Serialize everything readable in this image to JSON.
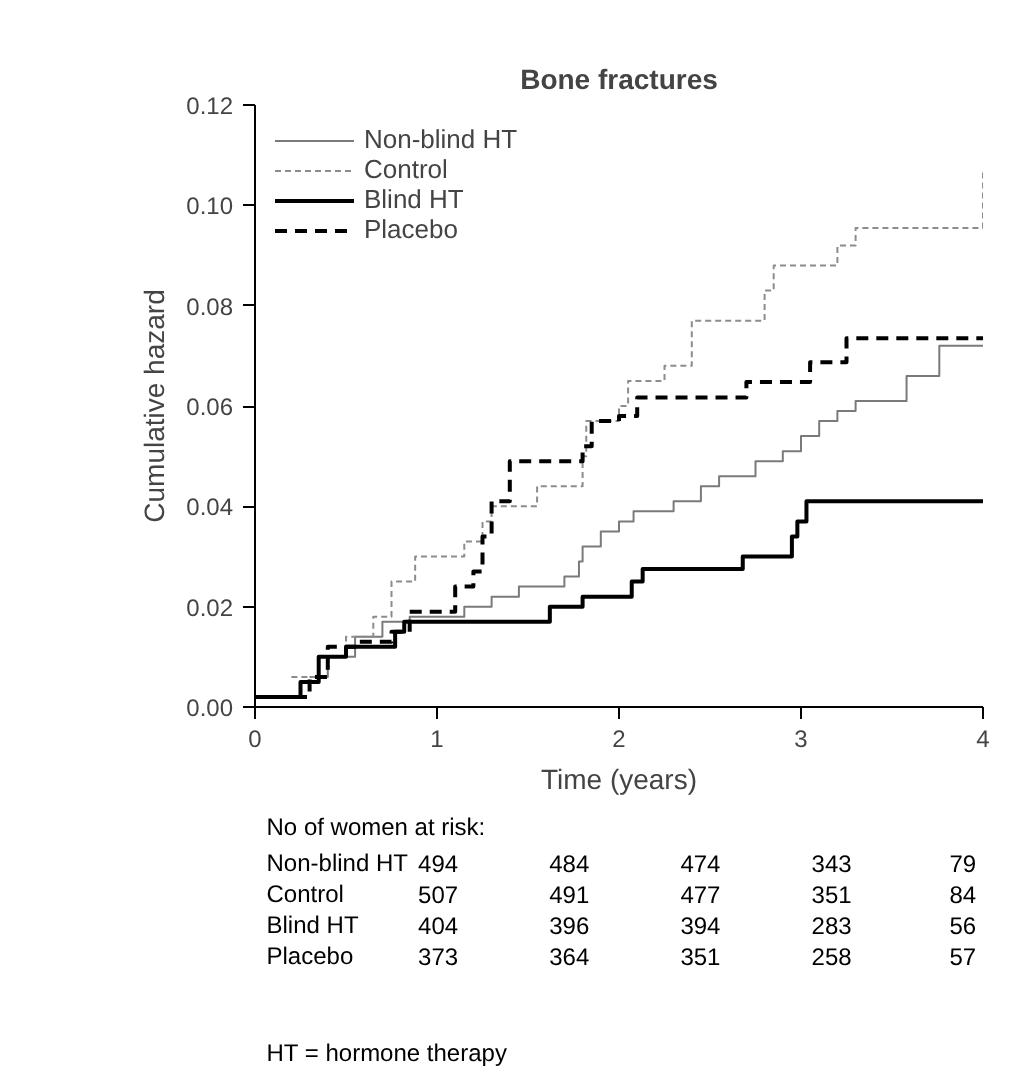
{
  "chart_data": {
    "type": "step",
    "title": "Bone fractures",
    "xlabel": "Time (years)",
    "ylabel": "Cumulative hazard",
    "xlim": [
      0,
      4
    ],
    "xticks": [
      0,
      1,
      2,
      3,
      4
    ],
    "ylim": [
      0,
      0.12
    ],
    "yticks": [
      {
        "value": 0,
        "label": "0.00"
      },
      {
        "value": 0.02,
        "label": "0.02"
      },
      {
        "value": 0.04,
        "label": "0.04"
      },
      {
        "value": 0.06,
        "label": "0.06"
      },
      {
        "value": 0.08,
        "label": "0.08"
      },
      {
        "value": 0.1,
        "label": "0.10"
      },
      {
        "value": 0.12,
        "label": "0.12"
      }
    ],
    "grid": false,
    "legend": "top left",
    "marker": "none",
    "series": [
      {
        "name": "Non-blind HT",
        "color": "#7a7a7a",
        "line_style": "solid",
        "x": [
          0.3,
          0.4,
          0.55,
          0.7,
          0.85,
          1.15,
          1.3,
          1.45,
          1.7,
          1.78,
          1.8,
          1.9,
          2.0,
          2.08,
          2.3,
          2.45,
          2.55,
          2.75,
          2.9,
          3.0,
          3.1,
          3.2,
          3.3,
          3.58,
          3.76,
          4
        ],
        "values": [
          0.006,
          0.01,
          0.014,
          0.017,
          0.018,
          0.02,
          0.022,
          0.024,
          0.026,
          0.029,
          0.032,
          0.035,
          0.037,
          0.039,
          0.041,
          0.044,
          0.046,
          0.049,
          0.051,
          0.054,
          0.057,
          0.059,
          0.061,
          0.066,
          0.072,
          0.072
        ]
      },
      {
        "name": "Control",
        "color": "#8c8c8c",
        "line_style": "dashed",
        "x": [
          0.2,
          0.35,
          0.5,
          0.65,
          0.75,
          0.88,
          1.15,
          1.25,
          1.3,
          1.55,
          1.8,
          1.82,
          2.0,
          2.05,
          2.25,
          2.4,
          2.8,
          2.85,
          3.2,
          3.3,
          4.0
        ],
        "values": [
          0.006,
          0.01,
          0.014,
          0.018,
          0.025,
          0.03,
          0.033,
          0.037,
          0.04,
          0.044,
          0.05,
          0.057,
          0.06,
          0.065,
          0.068,
          0.077,
          0.083,
          0.088,
          0.092,
          0.0955,
          0.107
        ]
      },
      {
        "name": "Blind HT",
        "color": "#000000",
        "line_style": "solid",
        "x": [
          0,
          0.25,
          0.35,
          0.5,
          0.77,
          0.82,
          1.62,
          1.8,
          2.07,
          2.13,
          2.68,
          2.95,
          2.98,
          3.03,
          4
        ],
        "values": [
          0.002,
          0.005,
          0.01,
          0.012,
          0.015,
          0.017,
          0.02,
          0.022,
          0.025,
          0.0275,
          0.03,
          0.034,
          0.037,
          0.041,
          0.041
        ]
      },
      {
        "name": "Placebo",
        "color": "#000000",
        "line_style": "dashed",
        "x": [
          0,
          0.3,
          0.4,
          0.55,
          0.75,
          0.85,
          1.1,
          1.2,
          1.25,
          1.3,
          1.4,
          1.8,
          1.85,
          2.0,
          2.1,
          2.7,
          3.05,
          3.25,
          4
        ],
        "values": [
          0.002,
          0.006,
          0.012,
          0.013,
          0.015,
          0.019,
          0.024,
          0.027,
          0.034,
          0.041,
          0.049,
          0.052,
          0.057,
          0.058,
          0.0617,
          0.0648,
          0.0687,
          0.0735,
          0.0735
        ]
      }
    ],
    "annotations": [
      "No of women at risk:",
      "Non-blind HT",
      "494",
      "484",
      "474",
      "343",
      "79",
      "Control",
      "507",
      "491",
      "477",
      "351",
      "84",
      "Blind HT",
      "404",
      "396",
      "394",
      "283",
      "56",
      "Placebo",
      "373",
      "364",
      "351",
      "258",
      "57",
      "HT = hormone therapy"
    ]
  }
}
